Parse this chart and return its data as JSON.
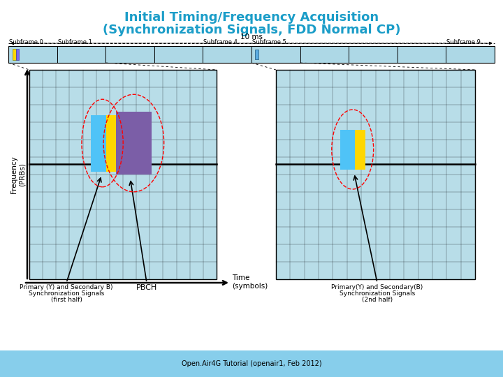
{
  "title_line1": "Initial Timing/Frequency Acquisition",
  "title_line2": "(Synchronization Signals, FDD Normal CP)",
  "title_color": "#1B9DC8",
  "bg_color": "#ffffff",
  "grid_bg": "#B8DDE8",
  "annotation_left_line1": "Primary (Y) and Secondary B)",
  "annotation_left_line2": "Synchronization Signals",
  "annotation_left_line3": "(first half)",
  "annotation_pbch": "PBCH",
  "annotation_right_line1": "Primary(Y) and Secondary(B)",
  "annotation_right_line2": "Synchronization Signals",
  "annotation_right_line3": "(2nd half)",
  "footer": "Open.Air4G Tutorial (openair1, Feb 2012)",
  "subframe_bar_color": "#ADD8E6",
  "label_freq": "Frequency\n(PRBs)",
  "label_time": "Time\n(symbols)"
}
